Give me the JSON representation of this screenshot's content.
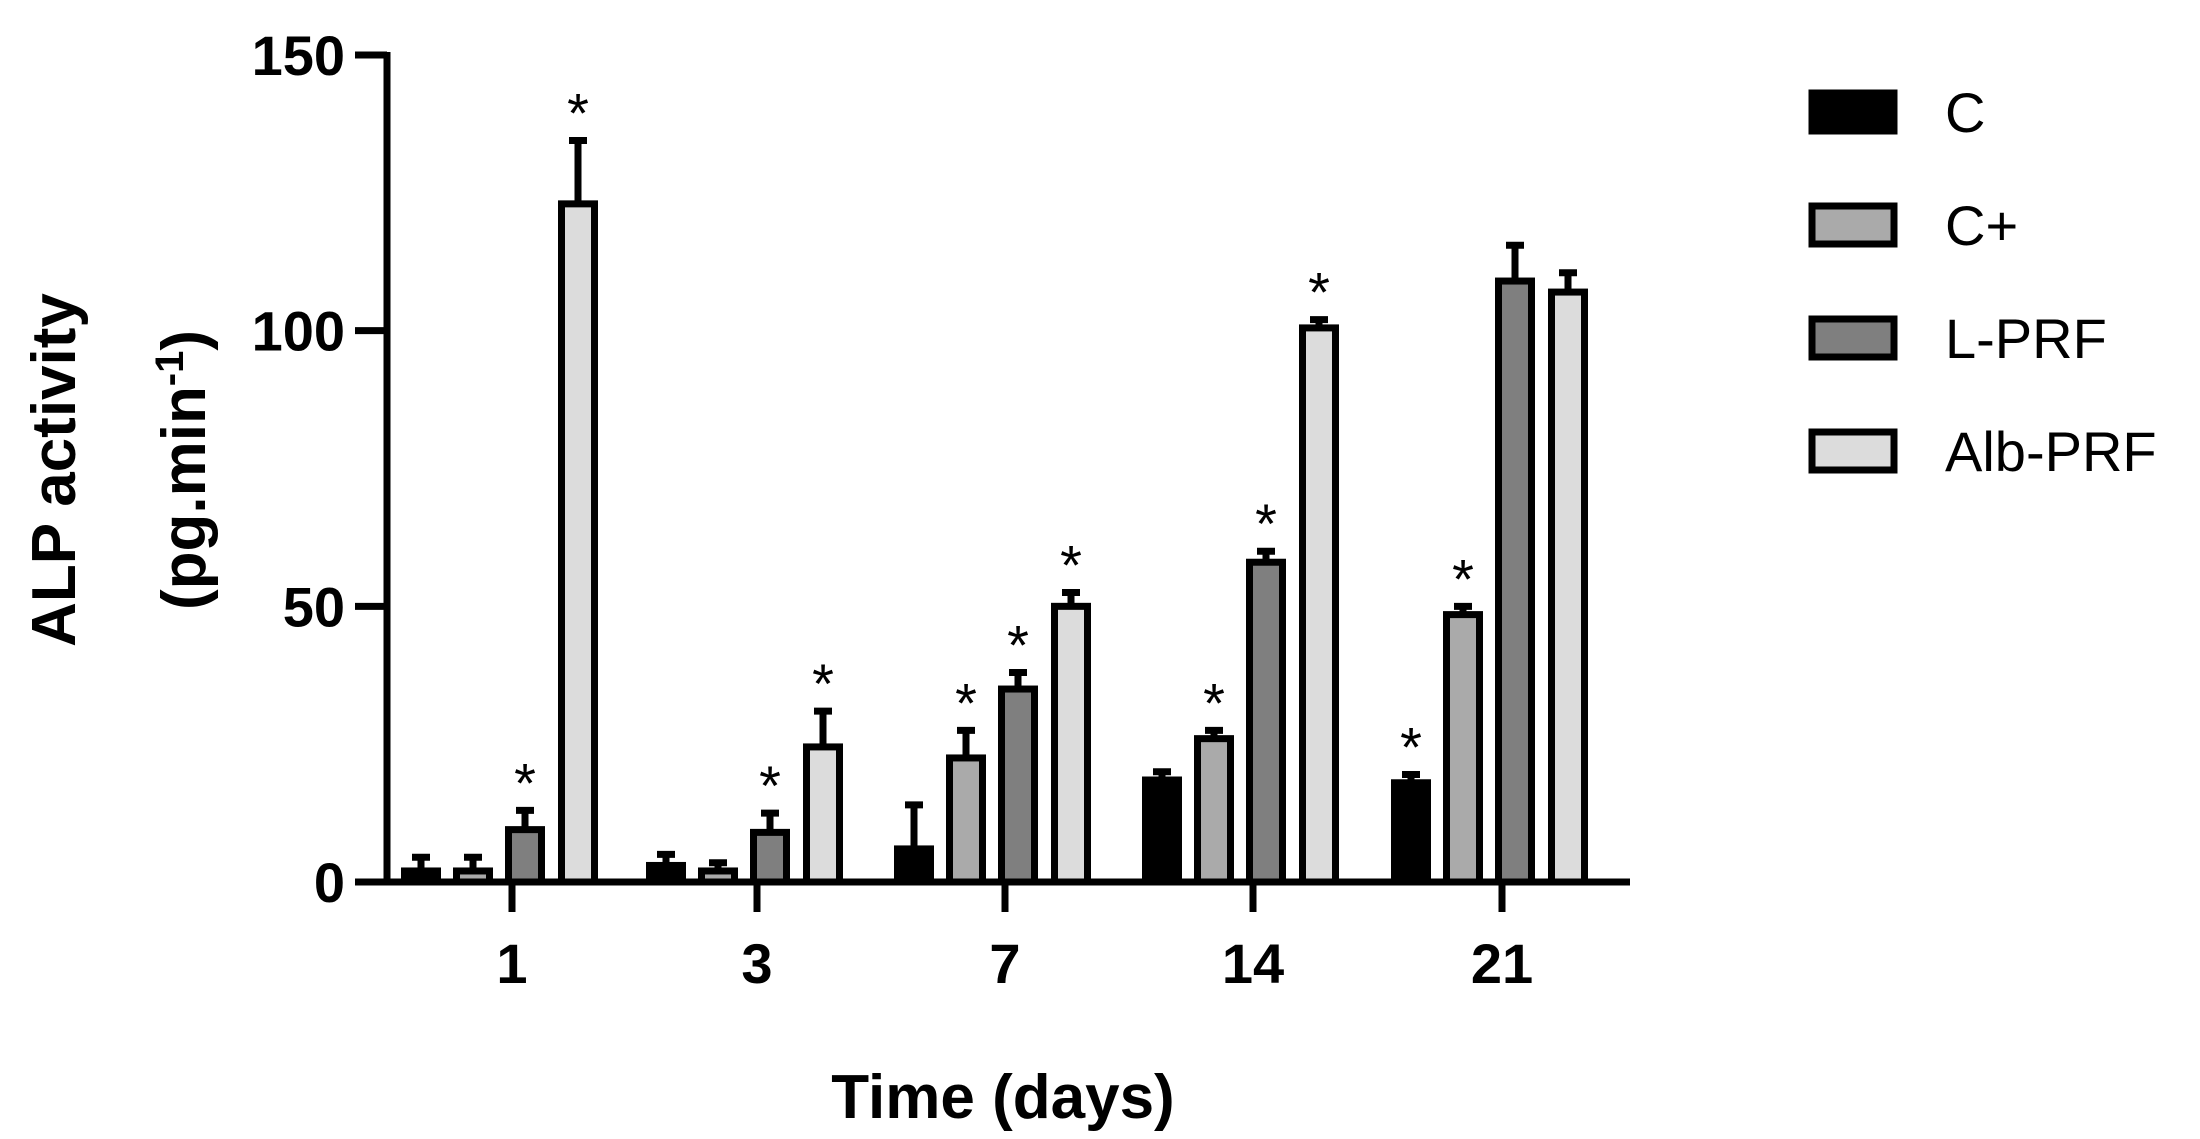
{
  "chart_data": {
    "type": "bar",
    "categories": [
      "1",
      "3",
      "7",
      "14",
      "21"
    ],
    "xlabel": "Time (days)",
    "ylabel_line1": "ALP activity",
    "ylabel_line2_base": "(pg.min",
    "ylabel_line2_sup": "-1",
    "ylabel_line2_end": ")",
    "ylim": [
      0,
      150
    ],
    "yticks": [
      "0",
      "50",
      "100",
      "150"
    ],
    "significance_marker": "*",
    "legend_position": "right",
    "series": [
      {
        "name": "C",
        "color": "#000000",
        "values": [
          2,
          3,
          6,
          18.5,
          18
        ],
        "errors": [
          2.5,
          2,
          8,
          1.5,
          1.5
        ],
        "significant": [
          false,
          false,
          false,
          false,
          true
        ]
      },
      {
        "name": "C+",
        "color": "#aaaaaa",
        "values": [
          2,
          2,
          22.5,
          26,
          48.5
        ],
        "errors": [
          2.5,
          1.5,
          5,
          1.5,
          1.5
        ],
        "significant": [
          false,
          false,
          true,
          true,
          true
        ]
      },
      {
        "name": "L-PRF",
        "color": "#7f7f7f",
        "values": [
          9.5,
          9,
          35,
          58,
          109
        ],
        "errors": [
          3.5,
          3.5,
          3,
          2,
          6.5
        ],
        "significant": [
          true,
          true,
          true,
          true,
          false
        ]
      },
      {
        "name": "Alb-PRF",
        "color": "#dcdcdc",
        "values": [
          123,
          24.5,
          50,
          100.5,
          107
        ],
        "errors": [
          11.5,
          6.5,
          2.5,
          1.5,
          3.5
        ],
        "significant": [
          true,
          true,
          true,
          true,
          false
        ]
      }
    ]
  }
}
